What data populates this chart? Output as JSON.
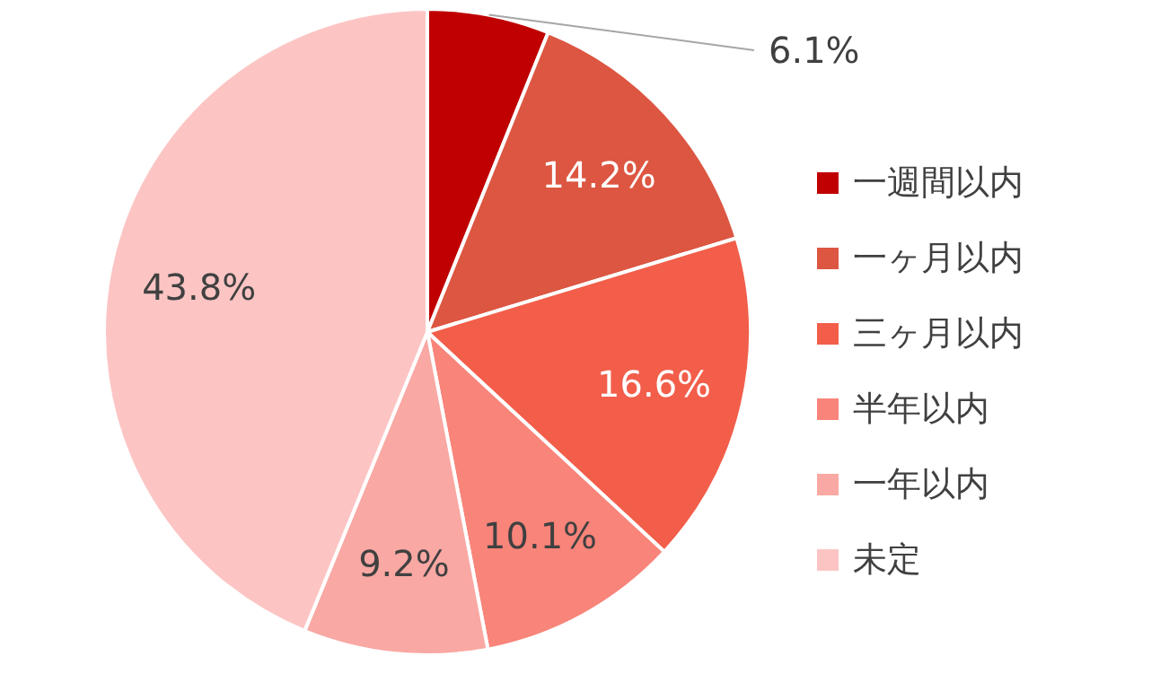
{
  "chart_data": {
    "type": "pie",
    "categories": [
      "一週間以内",
      "一ヶ月以内",
      "三ヶ月以内",
      "半年以内",
      "一年以内",
      "未定"
    ],
    "values": [
      6.1,
      14.2,
      16.6,
      10.1,
      9.2,
      43.8
    ],
    "value_labels": [
      "6.1%",
      "14.2%",
      "16.6%",
      "10.1%",
      "9.2%",
      "43.8%"
    ],
    "colors": [
      "#c00000",
      "#dc5642",
      "#f25e4a",
      "#f8847a",
      "#f9a8a3",
      "#fcc5c4"
    ],
    "legend": "right"
  }
}
